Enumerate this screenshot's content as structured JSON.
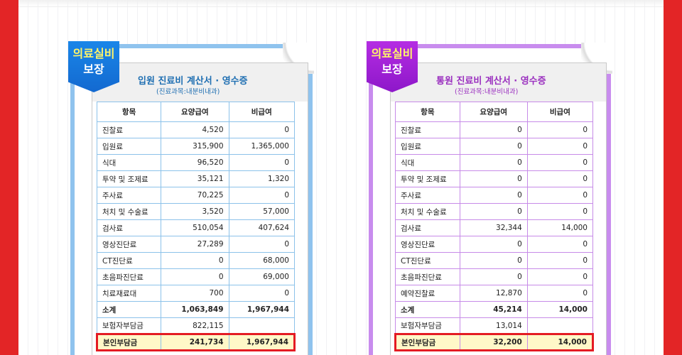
{
  "cards": [
    {
      "ribbon_line1": "의료실비",
      "ribbon_line2": "보장",
      "title": "입원 진료비 계산서 · 영수증",
      "subtitle": "(진료과목:내분비내과)",
      "headers": [
        "항목",
        "요양급여",
        "비급여"
      ],
      "rows": [
        {
          "item": "진찰료",
          "covered": "4,520",
          "noncovered": "0"
        },
        {
          "item": "입원료",
          "covered": "315,900",
          "noncovered": "1,365,000"
        },
        {
          "item": "식대",
          "covered": "96,520",
          "noncovered": "0"
        },
        {
          "item": "투약 및 조제료",
          "covered": "35,121",
          "noncovered": "1,320"
        },
        {
          "item": "주사료",
          "covered": "70,225",
          "noncovered": "0"
        },
        {
          "item": "처치 및 수술료",
          "covered": "3,520",
          "noncovered": "57,000"
        },
        {
          "item": "검사료",
          "covered": "510,054",
          "noncovered": "407,624"
        },
        {
          "item": "영상진단료",
          "covered": "27,289",
          "noncovered": "0"
        },
        {
          "item": "CT진단료",
          "covered": "0",
          "noncovered": "68,000"
        },
        {
          "item": "초음파진단료",
          "covered": "0",
          "noncovered": "69,000"
        },
        {
          "item": "치료재료대",
          "covered": "700",
          "noncovered": "0"
        }
      ],
      "subtotal": {
        "item": "소계",
        "covered": "1,063,849",
        "noncovered": "1,967,944"
      },
      "insurer": {
        "item": "보험자부담금",
        "covered": "822,115",
        "noncovered": ""
      },
      "own": {
        "item": "본인부담금",
        "covered": "241,734",
        "noncovered": "1,967,944"
      }
    },
    {
      "ribbon_line1": "의료실비",
      "ribbon_line2": "보장",
      "title": "통원 진료비 계산서 · 영수증",
      "subtitle": "(진료과목:내분비내과)",
      "headers": [
        "항목",
        "요양급여",
        "비급여"
      ],
      "rows": [
        {
          "item": "진찰료",
          "covered": "0",
          "noncovered": "0"
        },
        {
          "item": "입원료",
          "covered": "0",
          "noncovered": "0"
        },
        {
          "item": "식대",
          "covered": "0",
          "noncovered": "0"
        },
        {
          "item": "투약 및 조제료",
          "covered": "0",
          "noncovered": "0"
        },
        {
          "item": "주사료",
          "covered": "0",
          "noncovered": "0"
        },
        {
          "item": "처치 및 수술료",
          "covered": "0",
          "noncovered": "0"
        },
        {
          "item": "검사료",
          "covered": "32,344",
          "noncovered": "14,000"
        },
        {
          "item": "영상진단료",
          "covered": "0",
          "noncovered": "0"
        },
        {
          "item": "CT진단료",
          "covered": "0",
          "noncovered": "0"
        },
        {
          "item": "초음파진단료",
          "covered": "0",
          "noncovered": "0"
        },
        {
          "item": "예약진찰료",
          "covered": "12,870",
          "noncovered": "0"
        }
      ],
      "subtotal": {
        "item": "소계",
        "covered": "45,214",
        "noncovered": "14,000"
      },
      "insurer": {
        "item": "보험자부담금",
        "covered": "13,014",
        "noncovered": ""
      },
      "own": {
        "item": "본인부담금",
        "covered": "32,200",
        "noncovered": "14,000"
      }
    }
  ],
  "colors": {
    "frame_red": "#e32526",
    "blue_accent": "#8fc3ee",
    "purple_accent": "#c88cee",
    "highlight_red": "#e41b23",
    "highlight_fill": "#fff8c8"
  }
}
